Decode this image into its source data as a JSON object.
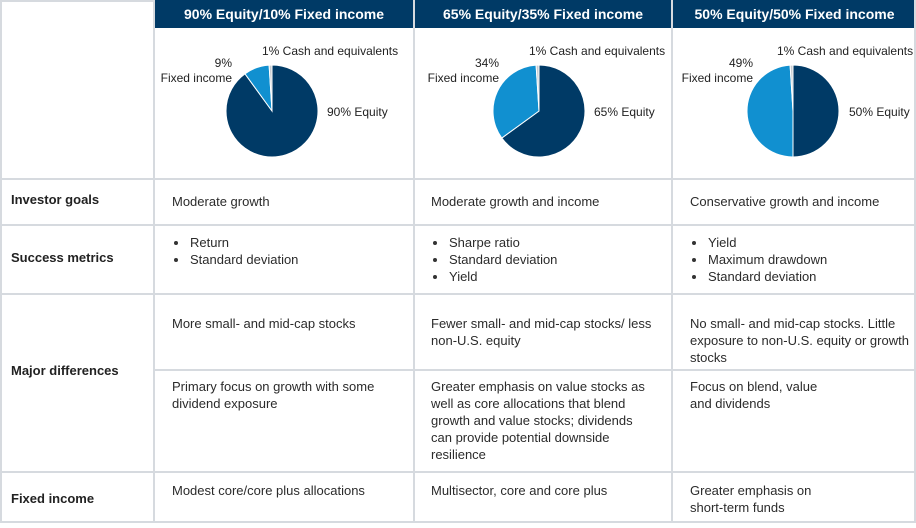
{
  "colors": {
    "header": "#003a66",
    "equity": "#003a66",
    "fixed_income": "#1190d0",
    "cash": "#c8ccd1",
    "border": "#d6dadf"
  },
  "columns": [
    {
      "title": "90% Equity/10% Fixed income",
      "pie": {
        "equity": 90,
        "fixed_income": 9,
        "cash": 1,
        "labels": {
          "cash": "1% Cash and equivalents",
          "fixed_pct": "9%",
          "fixed_name": "Fixed income",
          "equity": "90% Equity"
        }
      },
      "investor_goals": "Moderate growth",
      "success_metrics": [
        "Return",
        "Standard deviation"
      ],
      "major_differences": [
        "More small- and mid-cap stocks",
        "Primary focus on growth with some dividend exposure"
      ],
      "fixed_income": "Modest core/core plus allocations"
    },
    {
      "title": "65% Equity/35% Fixed income",
      "pie": {
        "equity": 65,
        "fixed_income": 34,
        "cash": 1,
        "labels": {
          "cash": "1% Cash and equivalents",
          "fixed_pct": "34%",
          "fixed_name": "Fixed income",
          "equity": "65% Equity"
        }
      },
      "investor_goals": "Moderate growth and income",
      "success_metrics": [
        "Sharpe ratio",
        "Standard deviation",
        "Yield"
      ],
      "major_differences": [
        "Fewer small- and mid-cap stocks/ less non-U.S. equity",
        "Greater emphasis on value stocks as well as core allocations that blend growth and value stocks; dividends can provide potential downside resilience"
      ],
      "fixed_income": "Multisector, core and core plus"
    },
    {
      "title": "50% Equity/50% Fixed income",
      "pie": {
        "equity": 50,
        "fixed_income": 49,
        "cash": 1,
        "labels": {
          "cash": "1% Cash and equivalents",
          "fixed_pct": "49%",
          "fixed_name": "Fixed income",
          "equity": "50% Equity"
        }
      },
      "investor_goals": "Conservative growth and income",
      "success_metrics": [
        "Yield",
        "Maximum drawdown",
        "Standard deviation"
      ],
      "major_differences": [
        "No small- and mid-cap stocks. Little exposure to non-U.S. equity or growth stocks",
        "Focus on blend, value and dividends"
      ],
      "fixed_income": "Greater emphasis on short-term funds"
    }
  ],
  "row_labels": {
    "investor_goals": "Investor goals",
    "success_metrics": "Success metrics",
    "major_differences": "Major differences",
    "fixed_income": "Fixed income"
  }
}
